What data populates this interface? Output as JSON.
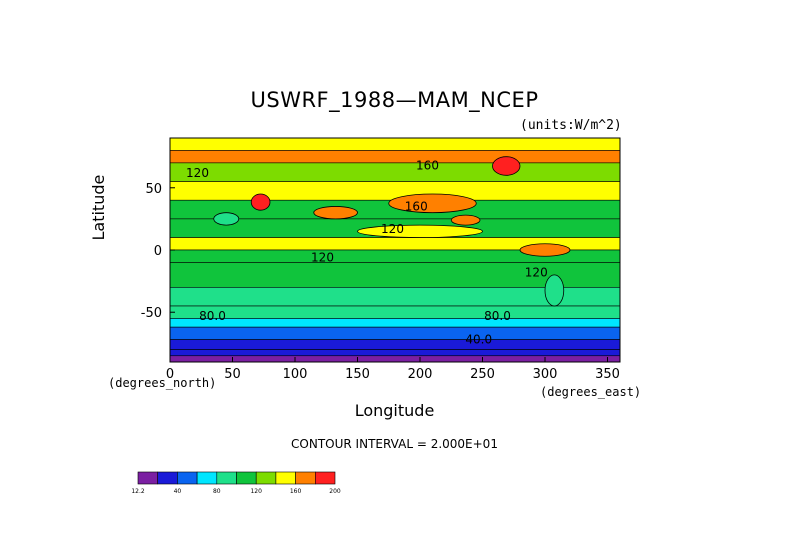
{
  "chart_data": {
    "type": "heatmap",
    "title": "USWRF_1988—MAM_NCEP",
    "units": "(units:W/m^2)",
    "xlabel": "Longitude",
    "ylabel": "Latitude",
    "x_unit_label": "(degrees_east)",
    "y_unit_label": "(degrees_north)",
    "xlim": [
      0,
      360
    ],
    "ylim": [
      -90,
      90
    ],
    "x_ticks": [
      0,
      50,
      100,
      150,
      200,
      250,
      300,
      350
    ],
    "y_ticks": [
      -50,
      0,
      50
    ],
    "contour_interval_text": "CONTOUR INTERVAL = 2.000E+01",
    "contour_labels": [
      {
        "text": "160",
        "lon": 206,
        "lat": 68
      },
      {
        "text": "120",
        "lon": 22,
        "lat": 62
      },
      {
        "text": "160",
        "lon": 197,
        "lat": 35
      },
      {
        "text": "120",
        "lon": 178,
        "lat": 17
      },
      {
        "text": "120",
        "lon": 122,
        "lat": -6
      },
      {
        "text": "120",
        "lon": 293,
        "lat": -18
      },
      {
        "text": "80.0",
        "lon": 34,
        "lat": -53
      },
      {
        "text": "80.0",
        "lon": 262,
        "lat": -53
      },
      {
        "text": "40.0",
        "lon": 247,
        "lat": -72
      }
    ],
    "bands": [
      {
        "lat": [
          80,
          90
        ],
        "value": 150
      },
      {
        "lat": [
          70,
          80
        ],
        "value": 170
      },
      {
        "lat": [
          55,
          70
        ],
        "value": 125
      },
      {
        "lat": [
          40,
          55
        ],
        "value": 140
      },
      {
        "lat": [
          25,
          40
        ],
        "value": 115
      },
      {
        "lat": [
          10,
          25
        ],
        "value": 110
      },
      {
        "lat": [
          0,
          10
        ],
        "value": 150
      },
      {
        "lat": [
          -10,
          0
        ],
        "value": 110
      },
      {
        "lat": [
          -30,
          -10
        ],
        "value": 100
      },
      {
        "lat": [
          -45,
          -30
        ],
        "value": 90
      },
      {
        "lat": [
          -55,
          -45
        ],
        "value": 80
      },
      {
        "lat": [
          -62,
          -55
        ],
        "value": 70
      },
      {
        "lat": [
          -72,
          -62
        ],
        "value": 50
      },
      {
        "lat": [
          -80,
          -72
        ],
        "value": 35
      },
      {
        "lat": [
          -85,
          -80
        ],
        "value": 20
      },
      {
        "lat": [
          -90,
          -85
        ],
        "value": 12.2
      }
    ],
    "patches": [
      {
        "lon": [
          258,
          280
        ],
        "lat": [
          60,
          75
        ],
        "value": 195
      },
      {
        "lon": [
          65,
          80
        ],
        "lat": [
          32,
          45
        ],
        "value": 195
      },
      {
        "lon": [
          115,
          150
        ],
        "lat": [
          25,
          35
        ],
        "value": 170
      },
      {
        "lon": [
          175,
          245
        ],
        "lat": [
          30,
          45
        ],
        "value": 160
      },
      {
        "lon": [
          280,
          320
        ],
        "lat": [
          -5,
          5
        ],
        "value": 170
      },
      {
        "lon": [
          225,
          248
        ],
        "lat": [
          20,
          28
        ],
        "value": 175
      },
      {
        "lon": [
          35,
          55
        ],
        "lat": [
          20,
          30
        ],
        "value": 90
      },
      {
        "lon": [
          300,
          315
        ],
        "lat": [
          -45,
          -20
        ],
        "value": 85
      },
      {
        "lon": [
          150,
          250
        ],
        "lat": [
          10,
          20
        ],
        "value": 150
      }
    ],
    "colorbar": {
      "ticks": [
        "12.2",
        "40",
        "80",
        "120",
        "160",
        "200"
      ],
      "colors": [
        "#7b1fa2",
        "#1a1ad8",
        "#0a64f0",
        "#00e6ff",
        "#1fe08a",
        "#10c43c",
        "#7ddc00",
        "#ffff00",
        "#ff8000",
        "#ff2020"
      ],
      "bounds": [
        12.2,
        20,
        40,
        60,
        80,
        100,
        120,
        140,
        160,
        180,
        200
      ]
    }
  }
}
